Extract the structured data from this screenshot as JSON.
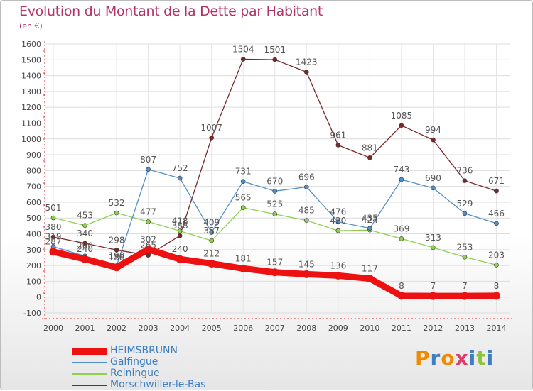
{
  "title": "Evolution du Montant de la Dette par Habitant",
  "unit_label": "(en €)",
  "logo": {
    "text": "Proxiti",
    "colors": [
      "#f18a00",
      "#3e7fc1",
      "#f18a00",
      "#e03c6a",
      "#3e7fc1",
      "#8fc23f",
      "#3e7fc1"
    ]
  },
  "colors": {
    "title": "#b2326a",
    "axis": "#d62b2b",
    "label": "#444444"
  },
  "chart_data": {
    "type": "line",
    "x": [
      "2000",
      "2001",
      "2002",
      "2003",
      "2004",
      "2005",
      "2006",
      "2007",
      "2008",
      "2009",
      "2010",
      "2011",
      "2012",
      "2013",
      "2014"
    ],
    "ylim": [
      -100,
      1600
    ],
    "yticks": [
      -100,
      0,
      100,
      200,
      300,
      400,
      500,
      600,
      700,
      800,
      900,
      1000,
      1100,
      1200,
      1300,
      1400,
      1500,
      1600
    ],
    "grid": true,
    "legend_position": "bottom-left",
    "series": [
      {
        "name": "HEIMSBRUNN",
        "color": "#ee1111",
        "values": [
          287,
          240,
          188,
          302,
          240,
          212,
          181,
          157,
          145,
          136,
          117,
          8,
          7,
          7,
          8
        ]
      },
      {
        "name": "Galfingue",
        "color": "#4f8fcb",
        "values": [
          319,
          260,
          198,
          807,
          752,
          409,
          731,
          670,
          696,
          476,
          435,
          743,
          690,
          529,
          466
        ]
      },
      {
        "name": "Reiningue",
        "color": "#8fd04f",
        "values": [
          501,
          453,
          532,
          477,
          418,
          357,
          565,
          525,
          485,
          420,
          424,
          369,
          313,
          253,
          203
        ]
      },
      {
        "name": "Morschwiller-le-Bas",
        "color": "#7a2a2a",
        "values": [
          380,
          340,
          298,
          265,
          388,
          1007,
          1504,
          1501,
          1423,
          961,
          881,
          1085,
          994,
          736,
          671
        ]
      }
    ]
  }
}
